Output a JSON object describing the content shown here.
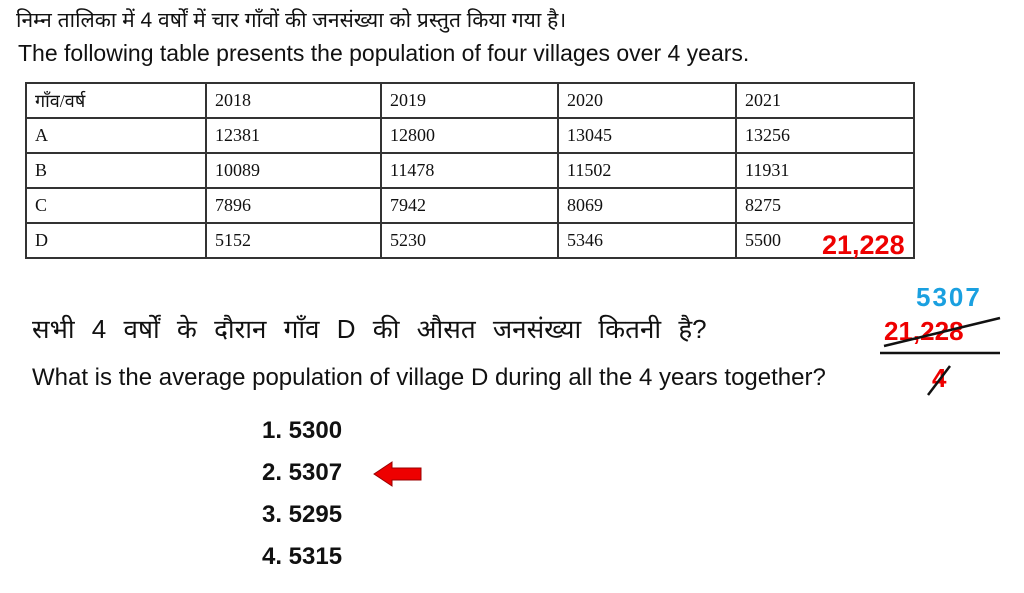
{
  "intro": {
    "hindi": "निम्न तालिका में 4 वर्षों में चार गाँवों की जनसंख्या को प्रस्तुत किया गया है।",
    "english": "The following table presents the population of four villages over 4 years."
  },
  "table": {
    "header": [
      "गाँव/वर्ष",
      "2018",
      "2019",
      "2020",
      "2021"
    ],
    "rows": [
      [
        "A",
        "12381",
        "12800",
        "13045",
        "13256"
      ],
      [
        "B",
        "10089",
        "11478",
        "11502",
        "11931"
      ],
      [
        "C",
        "7896",
        "7942",
        "8069",
        "8275"
      ],
      [
        "D",
        "5152",
        "5230",
        "5346",
        "5500"
      ]
    ]
  },
  "annotation": {
    "sum": "21,228"
  },
  "question": {
    "hindi": "सभी 4 वर्षों के दौरान गाँव D की औसत जनसंख्या कितनी है?",
    "english": "What is the average population of village D during all the 4 years together?"
  },
  "options": [
    "1. 5300",
    "2. 5307",
    "3. 5295",
    "4. 5315"
  ],
  "working": {
    "result": "5307",
    "numerator": "21,228",
    "denominator": "4"
  }
}
